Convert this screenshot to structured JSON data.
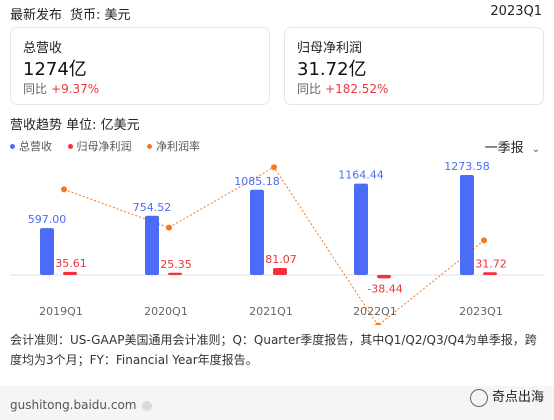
{
  "header": {
    "title": "最新发布",
    "currency": "货币: 美元",
    "period": "2023Q1"
  },
  "metrics": [
    {
      "label": "总营收",
      "value": "1274亿",
      "yoy_label": "同比",
      "yoy_value": "+9.37%"
    },
    {
      "label": "归母净利润",
      "value": "31.72亿",
      "yoy_label": "同比",
      "yoy_value": "+182.52%"
    }
  ],
  "chart_section": {
    "title": "营收趋势  单位: 亿美元",
    "period_selector": "一季报",
    "legend": [
      {
        "name": "总营收",
        "color": "#4a6cf7"
      },
      {
        "name": "归母净利润",
        "color": "#f5303a"
      },
      {
        "name": "净利润率",
        "color": "#f7781e"
      }
    ]
  },
  "chart_data": {
    "type": "bar",
    "categories": [
      "2019Q1",
      "2020Q1",
      "2021Q1",
      "2022Q1",
      "2023Q1"
    ],
    "series": [
      {
        "name": "总营收",
        "values": [
          597.0,
          754.52,
          1085.18,
          1164.44,
          1273.58
        ],
        "labels": [
          "597.00",
          "754.52",
          "1085.18",
          "1164.44",
          "1273.58"
        ],
        "color": "#4a6cf7"
      },
      {
        "name": "归母净利润",
        "values": [
          35.61,
          25.35,
          81.07,
          -38.44,
          31.72
        ],
        "labels": [
          "35.61",
          "25.35",
          "81.07",
          "-38.44",
          "31.72"
        ],
        "color": "#f5303a"
      },
      {
        "name": "净利润率",
        "type": "line",
        "values": [
          5.96,
          3.36,
          7.47,
          -3.3,
          2.49
        ],
        "color": "#f7781e"
      }
    ]
  },
  "footnote": "会计准则：US-GAAP美国通用会计准则；Q：Quarter季度报告，其中Q1/Q2/Q3/Q4为单季报，跨度均为3个月；FY：Financial Year年度报告。",
  "source": "gushitong.baidu.com",
  "watermark": "奇点出海"
}
